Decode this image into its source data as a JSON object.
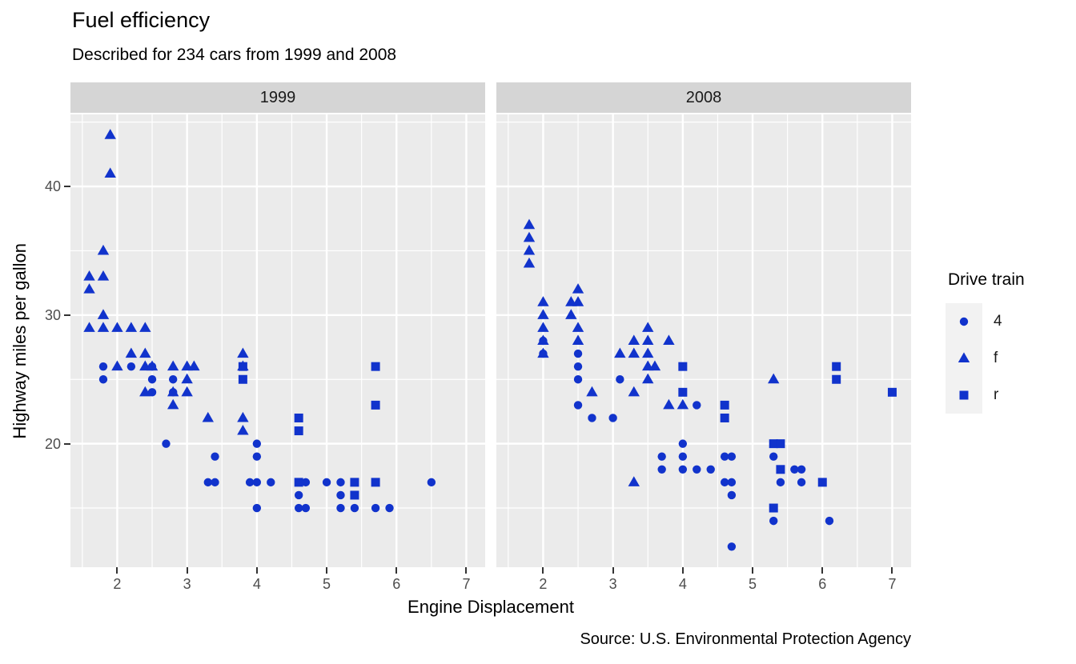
{
  "title": "Fuel efficiency",
  "subtitle": "Described for 234 cars from 1999 and 2008",
  "caption": "Source: U.S. Environmental Protection Agency",
  "x_axis": {
    "label": "Engine Displacement",
    "domain": [
      1.33,
      7.27
    ],
    "ticks": [
      2,
      3,
      4,
      5,
      6,
      7
    ],
    "minor": [
      1.5,
      2.5,
      3.5,
      4.5,
      5.5,
      6.5
    ]
  },
  "y_axis": {
    "label": "Highway miles per gallon",
    "domain": [
      10.4,
      45.6
    ],
    "ticks": [
      20,
      30,
      40
    ],
    "minor": [
      15,
      25,
      35,
      45
    ]
  },
  "legend": {
    "title": "Drive train",
    "entries": [
      {
        "label": "4",
        "shape": "circle"
      },
      {
        "label": "f",
        "shape": "triangle"
      },
      {
        "label": "r",
        "shape": "square"
      }
    ]
  },
  "colors": {
    "point": "#1133cc",
    "panel_bg": "#ebebeb",
    "strip_bg": "#d5d5d5",
    "grid": "#ffffff",
    "tick_text": "#4d4d4d",
    "text": "#000000",
    "key_bg": "#f2f2f2"
  },
  "chart_data": {
    "type": "scatter",
    "title": "Fuel efficiency",
    "subtitle": "Described for 234 cars from 1999 and 2008",
    "xlabel": "Engine Displacement",
    "ylabel": "Highway miles per gallon",
    "xlim": [
      1.33,
      7.27
    ],
    "ylim": [
      10.4,
      45.6
    ],
    "grid": "major-minor-white-on-gray",
    "legend_position": "right",
    "facets": [
      {
        "label": "1999",
        "series": [
          {
            "name": "4",
            "shape": "circle",
            "points": [
              [
                1.8,
                26
              ],
              [
                1.8,
                25
              ],
              [
                2.2,
                26
              ],
              [
                2.5,
                26
              ],
              [
                2.5,
                25
              ],
              [
                2.5,
                24
              ],
              [
                2.7,
                20
              ],
              [
                2.8,
                25
              ],
              [
                2.8,
                24
              ],
              [
                3.3,
                17
              ],
              [
                3.4,
                19
              ],
              [
                3.4,
                17
              ],
              [
                3.9,
                17
              ],
              [
                4.0,
                20
              ],
              [
                4.0,
                19
              ],
              [
                4.0,
                17
              ],
              [
                4.0,
                15
              ],
              [
                4.2,
                17
              ],
              [
                4.6,
                16
              ],
              [
                4.6,
                15
              ],
              [
                4.7,
                17
              ],
              [
                4.7,
                15
              ],
              [
                5.0,
                17
              ],
              [
                5.2,
                17
              ],
              [
                5.2,
                16
              ],
              [
                5.2,
                15
              ],
              [
                5.4,
                15
              ],
              [
                5.7,
                15
              ],
              [
                5.9,
                15
              ],
              [
                6.5,
                17
              ]
            ]
          },
          {
            "name": "f",
            "shape": "triangle",
            "points": [
              [
                1.6,
                33
              ],
              [
                1.6,
                32
              ],
              [
                1.6,
                29
              ],
              [
                1.8,
                35
              ],
              [
                1.8,
                33
              ],
              [
                1.8,
                30
              ],
              [
                1.8,
                29
              ],
              [
                1.9,
                44
              ],
              [
                1.9,
                41
              ],
              [
                2.0,
                29
              ],
              [
                2.0,
                26
              ],
              [
                2.2,
                29
              ],
              [
                2.2,
                27
              ],
              [
                2.4,
                29
              ],
              [
                2.4,
                27
              ],
              [
                2.4,
                26
              ],
              [
                2.4,
                24
              ],
              [
                2.5,
                26
              ],
              [
                2.8,
                26
              ],
              [
                2.8,
                24
              ],
              [
                2.8,
                23
              ],
              [
                3.0,
                26
              ],
              [
                3.0,
                25
              ],
              [
                3.0,
                24
              ],
              [
                3.1,
                26
              ],
              [
                3.3,
                22
              ],
              [
                3.8,
                27
              ],
              [
                3.8,
                26
              ],
              [
                3.8,
                22
              ],
              [
                3.8,
                21
              ]
            ]
          },
          {
            "name": "r",
            "shape": "square",
            "points": [
              [
                3.8,
                26
              ],
              [
                3.8,
                25
              ],
              [
                4.6,
                22
              ],
              [
                4.6,
                21
              ],
              [
                4.6,
                17
              ],
              [
                5.4,
                17
              ],
              [
                5.4,
                16
              ],
              [
                5.7,
                26
              ],
              [
                5.7,
                23
              ],
              [
                5.7,
                17
              ]
            ]
          }
        ]
      },
      {
        "label": "2008",
        "series": [
          {
            "name": "4",
            "shape": "circle",
            "points": [
              [
                2.0,
                28
              ],
              [
                2.0,
                27
              ],
              [
                2.5,
                27
              ],
              [
                2.5,
                26
              ],
              [
                2.5,
                25
              ],
              [
                2.5,
                23
              ],
              [
                2.7,
                22
              ],
              [
                3.0,
                22
              ],
              [
                3.1,
                25
              ],
              [
                3.7,
                19
              ],
              [
                3.7,
                18
              ],
              [
                4.0,
                20
              ],
              [
                4.0,
                19
              ],
              [
                4.0,
                18
              ],
              [
                4.2,
                23
              ],
              [
                4.2,
                18
              ],
              [
                4.4,
                18
              ],
              [
                4.6,
                19
              ],
              [
                4.6,
                17
              ],
              [
                4.7,
                19
              ],
              [
                4.7,
                17
              ],
              [
                4.7,
                16
              ],
              [
                4.7,
                12
              ],
              [
                5.3,
                19
              ],
              [
                5.3,
                14
              ],
              [
                5.4,
                17
              ],
              [
                5.6,
                18
              ],
              [
                5.7,
                18
              ],
              [
                5.7,
                17
              ],
              [
                6.1,
                14
              ]
            ]
          },
          {
            "name": "f",
            "shape": "triangle",
            "points": [
              [
                1.8,
                37
              ],
              [
                1.8,
                36
              ],
              [
                1.8,
                35
              ],
              [
                1.8,
                34
              ],
              [
                2.0,
                31
              ],
              [
                2.0,
                30
              ],
              [
                2.0,
                29
              ],
              [
                2.0,
                28
              ],
              [
                2.0,
                27
              ],
              [
                2.4,
                31
              ],
              [
                2.4,
                30
              ],
              [
                2.5,
                32
              ],
              [
                2.5,
                31
              ],
              [
                2.5,
                29
              ],
              [
                2.5,
                28
              ],
              [
                2.7,
                24
              ],
              [
                3.1,
                27
              ],
              [
                3.3,
                28
              ],
              [
                3.3,
                27
              ],
              [
                3.3,
                24
              ],
              [
                3.3,
                17
              ],
              [
                3.5,
                29
              ],
              [
                3.5,
                28
              ],
              [
                3.5,
                27
              ],
              [
                3.5,
                26
              ],
              [
                3.5,
                25
              ],
              [
                3.6,
                26
              ],
              [
                3.8,
                28
              ],
              [
                3.8,
                23
              ],
              [
                4.0,
                23
              ],
              [
                5.3,
                25
              ]
            ]
          },
          {
            "name": "r",
            "shape": "square",
            "points": [
              [
                4.0,
                26
              ],
              [
                4.0,
                24
              ],
              [
                4.6,
                23
              ],
              [
                4.6,
                22
              ],
              [
                5.3,
                20
              ],
              [
                5.3,
                15
              ],
              [
                5.4,
                20
              ],
              [
                5.4,
                18
              ],
              [
                6.0,
                17
              ],
              [
                6.2,
                26
              ],
              [
                6.2,
                25
              ],
              [
                7.0,
                24
              ]
            ]
          }
        ]
      }
    ]
  }
}
